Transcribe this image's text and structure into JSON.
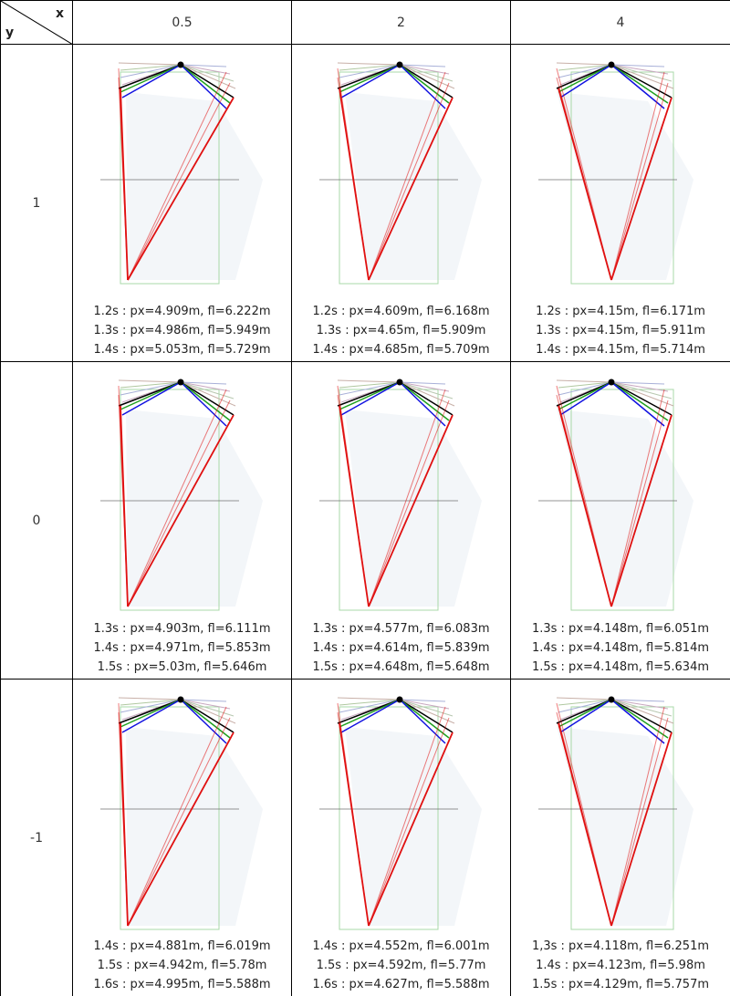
{
  "corner": {
    "x_label": "x",
    "y_label": "y"
  },
  "columns": [
    "0.5",
    "2",
    "4"
  ],
  "rows": [
    "1",
    "0",
    "-1"
  ],
  "cells": [
    [
      {
        "lean": 0.55,
        "captions": [
          "1.2s : px=4.909m, fl=6.222m",
          "1.3s : px=4.986m, fl=5.949m",
          "1.4s : px=5.053m, fl=5.729m"
        ]
      },
      {
        "lean": 0.3,
        "captions": [
          "1.2s : px=4.609m, fl=6.168m",
          "1.3s : px=4.65m, fl=5.909m",
          "1.4s : px=4.685m, fl=5.709m"
        ]
      },
      {
        "lean": 0.0,
        "captions": [
          "1.2s : px=4.15m, fl=6.171m",
          "1.3s : px=4.15m, fl=5.911m",
          "1.4s : px=4.15m, fl=5.714m"
        ]
      }
    ],
    [
      {
        "lean": 0.55,
        "captions": [
          "1.3s : px=4.903m, fl=6.111m",
          "1.4s : px=4.971m, fl=5.853m",
          "1.5s : px=5.03m, fl=5.646m"
        ]
      },
      {
        "lean": 0.3,
        "captions": [
          "1.3s : px=4.577m, fl=6.083m",
          "1.4s : px=4.614m, fl=5.839m",
          "1.5s : px=4.648m, fl=5.648m"
        ]
      },
      {
        "lean": 0.0,
        "captions": [
          "1.3s : px=4.148m, fl=6.051m",
          "1.4s : px=4.148m, fl=5.814m",
          "1.5s : px=4.148m, fl=5.634m"
        ]
      }
    ],
    [
      {
        "lean": 0.55,
        "captions": [
          "1.4s : px=4.881m, fl=6.019m",
          "1.5s : px=4.942m, fl=5.78m",
          "1.6s : px=4.995m, fl=5.588m"
        ]
      },
      {
        "lean": 0.3,
        "captions": [
          "1.4s : px=4.552m, fl=6.001m",
          "1.5s : px=4.592m, fl=5.77m",
          "1.6s : px=4.627m, fl=5.588m"
        ]
      },
      {
        "lean": 0.0,
        "captions": [
          "1,3s : px=4.118m, fl=6.251m",
          "1.4s : px=4.123m, fl=5.98m",
          "1.5s : px=4.129m, fl=5.757m"
        ]
      }
    ]
  ],
  "colors": {
    "fan_lines": [
      "#c8b0a8",
      "#b0c8a0",
      "#a8b0d8",
      "#c8a8c0",
      "#b8c8b0"
    ],
    "black": "#000000",
    "green": "#20a020",
    "blue": "#1010e0",
    "red": "#e01010",
    "frame": "#a8d8a8",
    "midline": "#707070"
  }
}
